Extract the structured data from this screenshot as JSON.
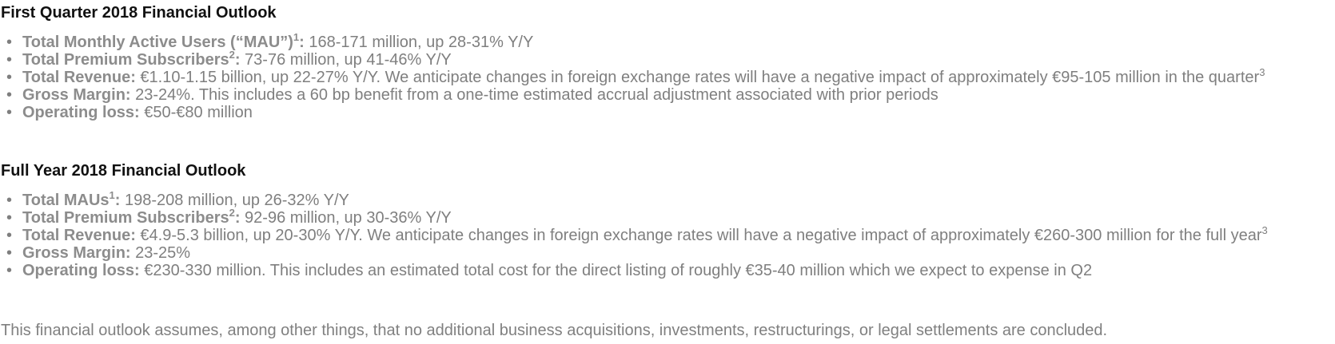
{
  "q1": {
    "title": "First Quarter 2018 Financial Outlook",
    "items": [
      {
        "label": "Total Monthly Active Users (“MAU”)",
        "sup": "1",
        "sep": ":",
        "text": " 168-171 million, up 28-31% Y/Y",
        "tail_sup": ""
      },
      {
        "label": "Total Premium Subscribers",
        "sup": "2",
        "sep": ":",
        "text": " 73-76 million, up 41-46% Y/Y",
        "tail_sup": ""
      },
      {
        "label": "Total Revenue:",
        "sup": "",
        "sep": "",
        "text": " €1.10-1.15 billion, up 22-27% Y/Y. We anticipate changes in foreign exchange rates will have a negative impact of approximately €95-105 million in the quarter",
        "tail_sup": "3"
      },
      {
        "label": "Gross Margin:",
        "sup": "",
        "sep": "",
        "text": " 23-24%. This includes a 60 bp benefit from a one-time estimated accrual adjustment associated with prior periods",
        "tail_sup": ""
      },
      {
        "label": "Operating loss:",
        "sup": "",
        "sep": "",
        "text": " €50-€80 million",
        "tail_sup": ""
      }
    ]
  },
  "fy": {
    "title": "Full Year 2018 Financial Outlook",
    "items": [
      {
        "label": "Total MAUs",
        "sup": "1",
        "sep": ":",
        "text": " 198-208 million, up 26-32% Y/Y",
        "tail_sup": ""
      },
      {
        "label": "Total Premium Subscribers",
        "sup": "2",
        "sep": ":",
        "text": " 92-96 million, up 30-36% Y/Y",
        "tail_sup": ""
      },
      {
        "label": "Total Revenue:",
        "sup": "",
        "sep": "",
        "text": " €4.9-5.3 billion, up 20-30% Y/Y. We anticipate changes in foreign exchange rates will have a negative impact of approximately €260-300 million for the full year",
        "tail_sup": "3"
      },
      {
        "label": "Gross Margin:",
        "sup": "",
        "sep": "",
        "text": " 23-25%",
        "tail_sup": ""
      },
      {
        "label": "Operating loss:",
        "sup": "",
        "sep": "",
        "text": " €230-330 million. This includes an estimated total cost for the direct listing of roughly €35-40 million which we expect to expense in Q2",
        "tail_sup": ""
      }
    ]
  },
  "footer": {
    "text": "This financial outlook assumes, among other things, that no additional business acquisitions, investments, restructurings, or legal settlements are concluded."
  },
  "bullet_glyph": "•"
}
